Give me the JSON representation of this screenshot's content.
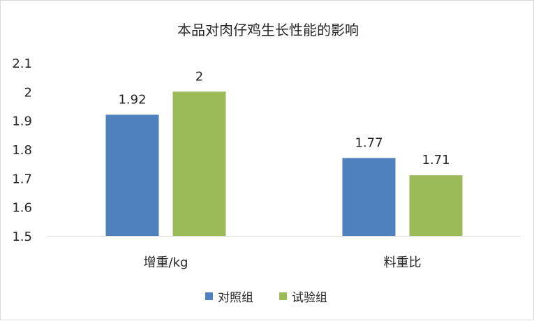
{
  "chart_data": {
    "type": "bar",
    "title": "本品对肉仔鸡生长性能的影响",
    "categories": [
      "增重/kg",
      "料重比"
    ],
    "series": [
      {
        "name": "对照组",
        "values": [
          1.92,
          1.77
        ],
        "labels": [
          "1.92",
          "1.77"
        ],
        "color": "#4f81bd"
      },
      {
        "name": "试验组",
        "values": [
          2,
          1.71
        ],
        "labels": [
          "2",
          "1.71"
        ],
        "color": "#9bbb59"
      }
    ],
    "ylim": [
      1.5,
      2.1
    ],
    "yticks": [
      "1.5",
      "1.6",
      "1.7",
      "1.8",
      "1.9",
      "2",
      "2.1"
    ],
    "grid": false,
    "legend_position": "bottom",
    "axis_color": "#d9d9d9"
  }
}
